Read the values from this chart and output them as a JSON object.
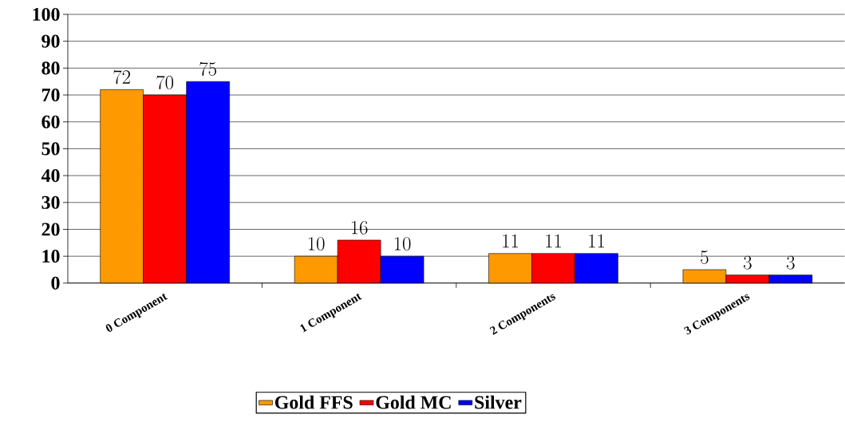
{
  "chart_data": {
    "type": "bar",
    "categories": [
      "0 Component",
      "1 Component",
      "2 Components",
      "3 Components"
    ],
    "series": [
      {
        "name": "Gold FFS",
        "color": "#ff9900",
        "values": [
          72,
          10,
          11,
          5
        ]
      },
      {
        "name": "Gold MC",
        "color": "#ff0000",
        "values": [
          70,
          16,
          11,
          3
        ]
      },
      {
        "name": "Silver",
        "color": "#0000ff",
        "values": [
          75,
          10,
          11,
          3
        ]
      }
    ],
    "ylim": [
      0,
      100
    ],
    "yticks": [
      0,
      10,
      20,
      30,
      40,
      50,
      60,
      70,
      80,
      90,
      100
    ],
    "grid": "y",
    "legend": "bottom",
    "data_labels": true
  }
}
